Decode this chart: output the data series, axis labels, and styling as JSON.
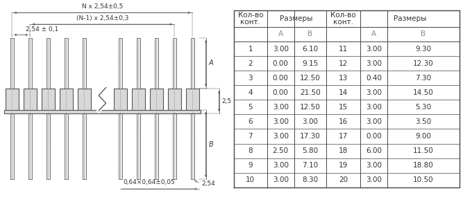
{
  "table_data": {
    "col1": [
      1,
      2,
      3,
      4,
      5,
      6,
      7,
      8,
      9,
      10
    ],
    "col2_A": [
      "3.00",
      "0.00",
      "0.00",
      "0.00",
      "3.00",
      "3.00",
      "3.00",
      "2.50",
      "3.00",
      "3.00"
    ],
    "col2_B": [
      "6.10",
      "9.15",
      "12.50",
      "21.50",
      "12.50",
      "3.00",
      "17.30",
      "5.80",
      "7.10",
      "8.30"
    ],
    "col3": [
      11,
      12,
      13,
      14,
      15,
      16,
      17,
      18,
      19,
      20
    ],
    "col4_A": [
      "3.00",
      "3.00",
      "0.40",
      "3.00",
      "3.00",
      "3.00",
      "0.00",
      "6.00",
      "3.00",
      "3.00"
    ],
    "col4_B": [
      "9.30",
      "12.30",
      "7.30",
      "14.50",
      "5.30",
      "3.50",
      "9.00",
      "11.50",
      "18.80",
      "10.50"
    ]
  },
  "dim_labels": {
    "n_dim": "N x 2,54±0,5",
    "n1_dim": "(N-1) x 2,54±0,3",
    "pitch": "2,54 ± 0,1",
    "cross_section": "0,64×0,64±0,05",
    "dim_A": "A",
    "dim_B": "B",
    "dim_25": "2,5",
    "dim_254": "2,54"
  },
  "bg_color": "#f0f0f0",
  "line_color": "#555555",
  "text_color": "#333333"
}
